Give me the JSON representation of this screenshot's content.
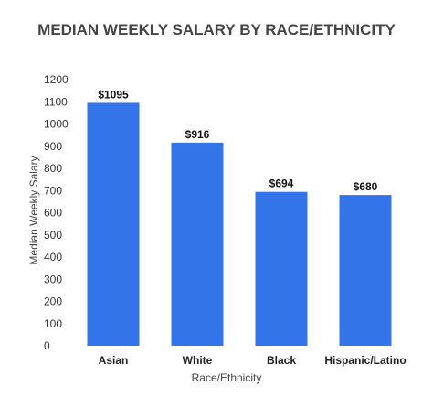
{
  "chart_data": {
    "type": "bar",
    "title": "MEDIAN WEEKLY SALARY BY RACE/ETHNICITY",
    "xlabel": "Race/Ethnicity",
    "ylabel": "Median Weekly Salary",
    "categories": [
      "Asian",
      "White",
      "Black",
      "Hispanic/Latino"
    ],
    "values": [
      1095,
      916,
      694,
      680
    ],
    "data_labels": [
      "$1095",
      "$916",
      "$694",
      "$680"
    ],
    "ylim": [
      0,
      1200
    ],
    "yticks": [
      "0",
      "100",
      "200",
      "300",
      "400",
      "500",
      "600",
      "700",
      "800",
      "900",
      "1000",
      "1100",
      "1200"
    ],
    "grid": false,
    "legend": "none",
    "bar_color": "#3374e8"
  }
}
